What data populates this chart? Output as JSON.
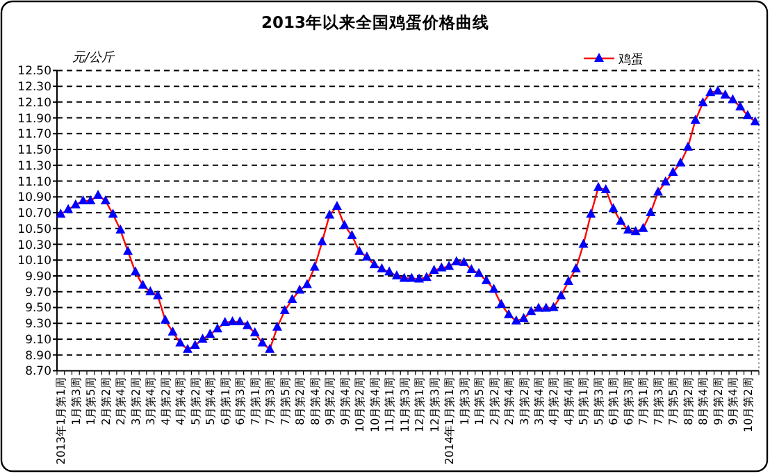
{
  "chart_data": {
    "type": "line",
    "title": "2013年以来全国鸡蛋价格曲线",
    "ylabel": "元/公斤",
    "categories": [
      "2013年1月第1周",
      null,
      "1月第3周",
      null,
      "1月第5周",
      null,
      "2月第2周",
      null,
      "2月第4周",
      null,
      "3月第2周",
      null,
      "3月第4周",
      null,
      "4月第2周",
      null,
      "4月第4周",
      null,
      "5月第2周",
      null,
      "5月第4周",
      null,
      "6月第1周",
      null,
      "6月第3周",
      null,
      "7月第1周",
      null,
      "7月第3周",
      null,
      "7月第5周",
      null,
      "8月第2周",
      null,
      "8月第4周",
      null,
      "9月第2周",
      null,
      "9月第4周",
      null,
      "10月第2周",
      null,
      "10月第4周",
      null,
      "11月第1周",
      null,
      "11月第3周",
      null,
      "12月第1周",
      null,
      "12月第3周",
      null,
      "2014年1月第1周",
      null,
      "1月第3周",
      null,
      "1月第5周",
      null,
      "2月第2周",
      null,
      "2月第4周",
      null,
      "3月第2周",
      null,
      "3月第4周",
      null,
      "4月第2周",
      null,
      "4月第4周",
      null,
      "5月第1周",
      null,
      "5月第3周",
      null,
      "6月第1周",
      null,
      "6月第3周",
      null,
      "7月第1周",
      null,
      "7月第3周",
      null,
      "7月第5周",
      null,
      "8月第2周",
      null,
      "8月第4周",
      null,
      "9月第2周",
      null,
      "9月第4周",
      null,
      "10月第2周",
      null
    ],
    "series": [
      {
        "name": "鸡蛋",
        "color": "#ff0000",
        "colors": [
          "#0000ff",
          "#0000ff",
          "#0000ff",
          "#0000ff",
          "#0000ff",
          "#0000ff",
          "#0000ff",
          "#0000ff",
          "#0000ff",
          "#0000ff",
          "#0000ff",
          "#0000ff",
          "#0000ff",
          "#0000ff",
          "#0000ff",
          "#0000ff",
          "#0000ff",
          "#0000ff",
          "#0000ff",
          "#0000ff",
          "#0000ff",
          "#0000ff",
          "#0000ff",
          "#0000ff",
          "#0000ff",
          "#0000ff",
          "#0000ff",
          "#0000ff",
          "#0000ff",
          "#0000ff",
          "#0000ff",
          "#0000ff",
          "#0000ff",
          "#0000ff",
          "#0000ff",
          "#0000ff",
          "#0000ff",
          "#0000ff",
          "#0000ff",
          "#0000ff",
          "#0000ff",
          "#0000ff",
          "#0000ff",
          "#0000ff",
          "#0000ff",
          "#0000ff",
          "#0000ff",
          "#0000ff",
          "#0000ff",
          "#0000ff",
          "#0000ff",
          "#0000ff",
          "#0000ff",
          "#0000ff",
          "#0000ff",
          "#0000ff",
          "#0000ff",
          "#0000ff",
          "#0000ff",
          "#0000ff",
          "#0000ff",
          "#0000ff",
          "#0000ff",
          "#0000ff",
          "#0000ff",
          "#0000ff",
          "#0000ff",
          "#0000ff",
          "#0000ff",
          "#0000ff",
          "#0000ff",
          "#0000ff",
          "#0000ff",
          "#0000ff",
          "#0000ff",
          "#0000ff",
          "#0000ff",
          "#0000ff",
          "#0000ff",
          "#0000ff",
          "#0000ff",
          "#0000ff",
          "#0000ff",
          "#0000ff",
          "#0000ff",
          "#0000ff",
          "#0000ff",
          "#0000ff",
          "#0000ff",
          "#0000ff",
          "#0000ff",
          "#0000ff",
          "#0000ff",
          "#0000ff"
        ],
        "values": [
          10.68,
          10.74,
          10.8,
          10.85,
          10.85,
          10.92,
          10.85,
          10.68,
          10.48,
          10.21,
          9.95,
          9.78,
          9.7,
          9.65,
          9.34,
          9.19,
          9.05,
          8.97,
          9.02,
          9.1,
          9.16,
          9.23,
          9.31,
          9.32,
          9.32,
          9.27,
          9.18,
          9.05,
          8.97,
          9.25,
          9.46,
          9.6,
          9.72,
          9.79,
          10.01,
          10.33,
          10.67,
          10.78,
          10.54,
          10.41,
          10.21,
          10.14,
          10.04,
          9.99,
          9.95,
          9.9,
          9.87,
          9.87,
          9.86,
          9.88,
          9.97,
          10.0,
          10.02,
          10.08,
          10.07,
          9.98,
          9.93,
          9.84,
          9.73,
          9.54,
          9.41,
          9.33,
          9.36,
          9.45,
          9.49,
          9.49,
          9.5,
          9.65,
          9.83,
          9.99,
          10.3,
          10.68,
          11.02,
          10.99,
          10.75,
          10.59,
          10.48,
          10.46,
          10.5,
          10.7,
          10.96,
          11.09,
          11.21,
          11.33,
          11.53,
          11.87,
          12.09,
          12.22,
          12.24,
          12.19,
          12.13,
          12.04,
          11.93,
          11.85
        ]
      }
    ],
    "ylim": [
      8.7,
      12.5
    ],
    "yticks": [
      {
        "value": 8.7,
        "label": "8.70"
      },
      {
        "value": 8.9,
        "label": "8.90"
      },
      {
        "value": 9.1,
        "label": "9.10"
      },
      {
        "value": 9.3,
        "label": "9.30"
      },
      {
        "value": 9.5,
        "label": "9.50"
      },
      {
        "value": 9.7,
        "label": "9.70"
      },
      {
        "value": 9.9,
        "label": "9.90"
      },
      {
        "value": 10.1,
        "label": "10.10"
      },
      {
        "value": 10.3,
        "label": "10.30"
      },
      {
        "value": 10.5,
        "label": "10.50"
      },
      {
        "value": 10.7,
        "label": "10.70"
      },
      {
        "value": 10.9,
        "label": "10.90"
      },
      {
        "value": 11.1,
        "label": "11.10"
      },
      {
        "value": 11.3,
        "label": "11.30"
      },
      {
        "value": 11.5,
        "label": "11.50"
      },
      {
        "value": 11.7,
        "label": "11.70"
      },
      {
        "value": 11.9,
        "label": "11.90"
      },
      {
        "value": 12.1,
        "label": "12.10"
      },
      {
        "value": 12.3,
        "label": "12.30"
      },
      {
        "value": 12.5,
        "label": "12.50"
      }
    ],
    "grid": "y",
    "legend": "top right",
    "marker": "triangle",
    "line_style": "solid"
  }
}
